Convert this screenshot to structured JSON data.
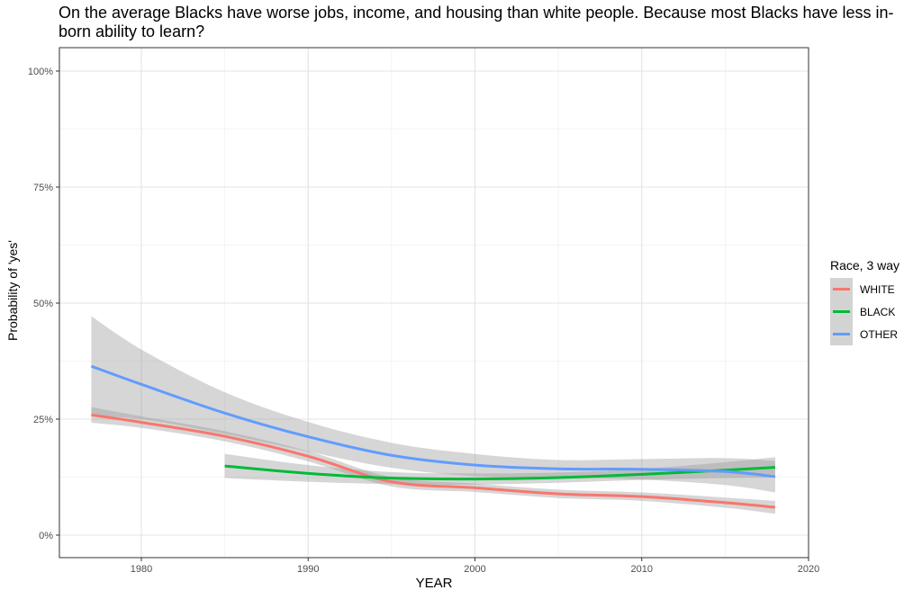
{
  "chart_data": {
    "type": "line",
    "title": "On the average Blacks have worse jobs, income, and housing than white people. Because most Blacks have less in-born ability to learn?",
    "xlabel": "YEAR",
    "ylabel": "Probability of 'yes'",
    "xlim": [
      1975,
      2020
    ],
    "ylim": [
      0,
      1
    ],
    "x_ticks": [
      1980,
      1990,
      2000,
      2010,
      2020
    ],
    "y_ticks": [
      {
        "value": 0,
        "label": "0%"
      },
      {
        "value": 0.25,
        "label": "25%"
      },
      {
        "value": 0.5,
        "label": "50%"
      },
      {
        "value": 0.75,
        "label": "75%"
      },
      {
        "value": 1.0,
        "label": "100%"
      }
    ],
    "grid": true,
    "legend": {
      "title": "Race, 3 way",
      "position": "right"
    },
    "series": [
      {
        "name": "WHITE",
        "color": "#F8766D",
        "x": [
          1977,
          1980,
          1985,
          1990,
          1995,
          2000,
          2005,
          2010,
          2015,
          2018
        ],
        "y": [
          0.259,
          0.243,
          0.213,
          0.17,
          0.115,
          0.102,
          0.089,
          0.083,
          0.07,
          0.06
        ],
        "lower": [
          0.242,
          0.231,
          0.202,
          0.159,
          0.105,
          0.093,
          0.08,
          0.074,
          0.059,
          0.046
        ],
        "upper": [
          0.276,
          0.256,
          0.224,
          0.181,
          0.125,
          0.111,
          0.098,
          0.092,
          0.081,
          0.074
        ]
      },
      {
        "name": "BLACK",
        "color": "#00BA38",
        "x": [
          1985,
          1990,
          1995,
          2000,
          2005,
          2010,
          2015,
          2018
        ],
        "y": [
          0.149,
          0.133,
          0.123,
          0.121,
          0.124,
          0.131,
          0.14,
          0.146
        ],
        "lower": [
          0.123,
          0.115,
          0.11,
          0.109,
          0.113,
          0.119,
          0.123,
          0.124
        ],
        "upper": [
          0.175,
          0.151,
          0.136,
          0.133,
          0.135,
          0.143,
          0.157,
          0.168
        ]
      },
      {
        "name": "OTHER",
        "color": "#619CFF",
        "x": [
          1977,
          1980,
          1985,
          1990,
          1995,
          2000,
          2005,
          2010,
          2015,
          2018
        ],
        "y": [
          0.364,
          0.325,
          0.263,
          0.212,
          0.172,
          0.151,
          0.143,
          0.142,
          0.137,
          0.126
        ],
        "lower": [
          0.256,
          0.25,
          0.218,
          0.18,
          0.145,
          0.127,
          0.124,
          0.12,
          0.108,
          0.092
        ],
        "upper": [
          0.472,
          0.4,
          0.308,
          0.244,
          0.199,
          0.175,
          0.162,
          0.164,
          0.166,
          0.16
        ]
      }
    ]
  }
}
